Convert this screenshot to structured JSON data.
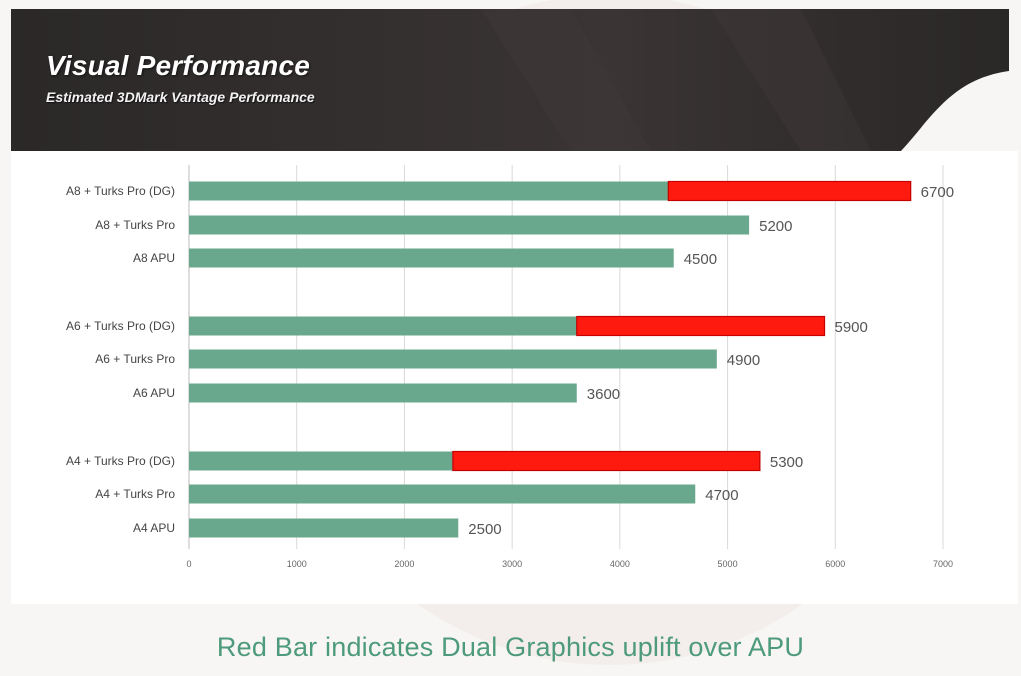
{
  "header": {
    "title": "Visual Performance",
    "subtitle": "Estimated 3DMark Vantage Performance"
  },
  "caption": "Red Bar indicates Dual Graphics uplift over APU",
  "colors": {
    "base_bar": "#6aa88d",
    "uplift_bar": "#ff1a10",
    "header_band": "#2e2b2b",
    "caption": "#4e9a7c",
    "grid": "#d9d9d9"
  },
  "chart_data": {
    "type": "bar",
    "orientation": "horizontal",
    "stacked": true,
    "categories": [
      "A8 + Turks Pro (DG)",
      "A8 + Turks Pro",
      "A8 APU",
      "A6 + Turks Pro (DG)",
      "A6 + Turks Pro",
      "A6 APU",
      "A4 + Turks Pro (DG)",
      "A4 + Turks Pro",
      "A4 APU"
    ],
    "groups": [
      [
        "A8 + Turks Pro (DG)",
        "A8 + Turks Pro",
        "A8 APU"
      ],
      [
        "A6 + Turks Pro (DG)",
        "A6 + Turks Pro",
        "A6 APU"
      ],
      [
        "A4 + Turks Pro (DG)",
        "A4 + Turks Pro",
        "A4 APU"
      ]
    ],
    "series": [
      {
        "values": [
          4450,
          5200,
          4500,
          3600,
          4900,
          3600,
          2450,
          4700,
          2500
        ]
      },
      {
        "values": [
          2250,
          0,
          0,
          2300,
          0,
          0,
          2850,
          0,
          0
        ]
      }
    ],
    "totals": [
      6700,
      5200,
      4500,
      5900,
      4900,
      3600,
      5300,
      4700,
      2500
    ],
    "xlim": [
      0,
      7000
    ],
    "xticks": [
      0,
      1000,
      2000,
      3000,
      4000,
      5000,
      6000,
      7000
    ],
    "grid": true,
    "legend": "none"
  }
}
